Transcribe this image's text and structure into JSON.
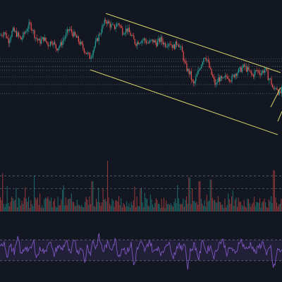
{
  "theme": {
    "background": "#131722",
    "bull": "#26a69a",
    "bear": "#ef5350",
    "trendline": "#d8d56a",
    "level": "#787b86",
    "rsi": "#7e57c2",
    "rsi_band": "#7e57c2"
  },
  "chart_data": {
    "type": "candlestick",
    "title": "",
    "price": {
      "ylim": [
        0,
        100
      ],
      "close_path": [
        [
          0,
          79
        ],
        [
          6,
          82
        ],
        [
          12,
          75
        ],
        [
          18,
          83
        ],
        [
          24,
          80
        ],
        [
          30,
          76
        ],
        [
          36,
          82
        ],
        [
          42,
          88
        ],
        [
          46,
          84
        ],
        [
          50,
          78
        ],
        [
          56,
          74
        ],
        [
          62,
          77
        ],
        [
          68,
          72
        ],
        [
          74,
          75
        ],
        [
          80,
          69
        ],
        [
          86,
          72
        ],
        [
          92,
          78
        ],
        [
          98,
          84
        ],
        [
          104,
          80
        ],
        [
          110,
          76
        ],
        [
          116,
          71
        ],
        [
          122,
          66
        ],
        [
          128,
          62
        ],
        [
          132,
          68
        ],
        [
          138,
          76
        ],
        [
          144,
          84
        ],
        [
          150,
          91
        ],
        [
          156,
          87
        ],
        [
          162,
          85
        ],
        [
          168,
          89
        ],
        [
          174,
          82
        ],
        [
          180,
          84
        ],
        [
          186,
          79
        ],
        [
          192,
          73
        ],
        [
          198,
          75
        ],
        [
          204,
          76
        ],
        [
          210,
          73
        ],
        [
          216,
          75
        ],
        [
          222,
          73
        ],
        [
          228,
          76
        ],
        [
          234,
          72
        ],
        [
          240,
          74
        ],
        [
          246,
          70
        ],
        [
          252,
          74
        ],
        [
          258,
          67
        ],
        [
          262,
          57
        ],
        [
          266,
          52
        ],
        [
          270,
          49
        ],
        [
          274,
          40
        ],
        [
          278,
          46
        ],
        [
          282,
          52
        ],
        [
          286,
          58
        ],
        [
          290,
          64
        ],
        [
          294,
          60
        ],
        [
          298,
          52
        ],
        [
          302,
          46
        ],
        [
          306,
          40
        ],
        [
          310,
          46
        ],
        [
          316,
          44
        ],
        [
          322,
          48
        ],
        [
          328,
          45
        ],
        [
          334,
          50
        ],
        [
          340,
          52
        ],
        [
          346,
          55
        ],
        [
          352,
          52
        ],
        [
          358,
          48
        ],
        [
          364,
          52
        ],
        [
          370,
          50
        ],
        [
          376,
          53
        ],
        [
          380,
          47
        ],
        [
          384,
          44
        ],
        [
          388,
          36
        ],
        [
          392,
          40
        ],
        [
          396,
          33
        ],
        [
          400,
          37
        ]
      ],
      "levels": [
        61,
        59,
        55,
        52,
        47,
        41,
        34
      ]
    },
    "volume": {
      "ylim": [
        0,
        100
      ],
      "threshold": 65,
      "spikes": [
        [
          3,
          70
        ],
        [
          48,
          65
        ],
        [
          130,
          55
        ],
        [
          152,
          92
        ],
        [
          190,
          45
        ],
        [
          268,
          62
        ],
        [
          282,
          55
        ],
        [
          298,
          58
        ],
        [
          388,
          75
        ]
      ]
    },
    "rsi": {
      "ylim": [
        0,
        100
      ],
      "upper": 70,
      "lower": 30,
      "path": [
        [
          0,
          52
        ],
        [
          6,
          68
        ],
        [
          10,
          38
        ],
        [
          14,
          60
        ],
        [
          20,
          46
        ],
        [
          26,
          74
        ],
        [
          30,
          40
        ],
        [
          36,
          58
        ],
        [
          42,
          48
        ],
        [
          48,
          66
        ],
        [
          52,
          36
        ],
        [
          58,
          56
        ],
        [
          64,
          44
        ],
        [
          70,
          72
        ],
        [
          76,
          40
        ],
        [
          82,
          58
        ],
        [
          88,
          52
        ],
        [
          94,
          68
        ],
        [
          100,
          38
        ],
        [
          106,
          76
        ],
        [
          110,
          44
        ],
        [
          116,
          60
        ],
        [
          120,
          24
        ],
        [
          124,
          62
        ],
        [
          128,
          42
        ],
        [
          132,
          70
        ],
        [
          136,
          52
        ],
        [
          140,
          78
        ],
        [
          146,
          48
        ],
        [
          152,
          62
        ],
        [
          158,
          54
        ],
        [
          164,
          70
        ],
        [
          168,
          38
        ],
        [
          174,
          56
        ],
        [
          180,
          46
        ],
        [
          186,
          62
        ],
        [
          190,
          18
        ],
        [
          194,
          50
        ],
        [
          200,
          64
        ],
        [
          206,
          48
        ],
        [
          212,
          70
        ],
        [
          218,
          44
        ],
        [
          224,
          58
        ],
        [
          230,
          40
        ],
        [
          236,
          66
        ],
        [
          242,
          56
        ],
        [
          246,
          38
        ],
        [
          252,
          60
        ],
        [
          258,
          52
        ],
        [
          262,
          70
        ],
        [
          266,
          14
        ],
        [
          270,
          48
        ],
        [
          276,
          62
        ],
        [
          282,
          34
        ],
        [
          288,
          72
        ],
        [
          292,
          46
        ],
        [
          298,
          58
        ],
        [
          304,
          38
        ],
        [
          310,
          62
        ],
        [
          316,
          70
        ],
        [
          322,
          44
        ],
        [
          328,
          56
        ],
        [
          334,
          40
        ],
        [
          340,
          72
        ],
        [
          346,
          58
        ],
        [
          350,
          50
        ],
        [
          356,
          64
        ],
        [
          362,
          44
        ],
        [
          368,
          58
        ],
        [
          374,
          66
        ],
        [
          378,
          40
        ],
        [
          384,
          56
        ],
        [
          388,
          12
        ],
        [
          394,
          52
        ],
        [
          400,
          46
        ]
      ]
    }
  }
}
